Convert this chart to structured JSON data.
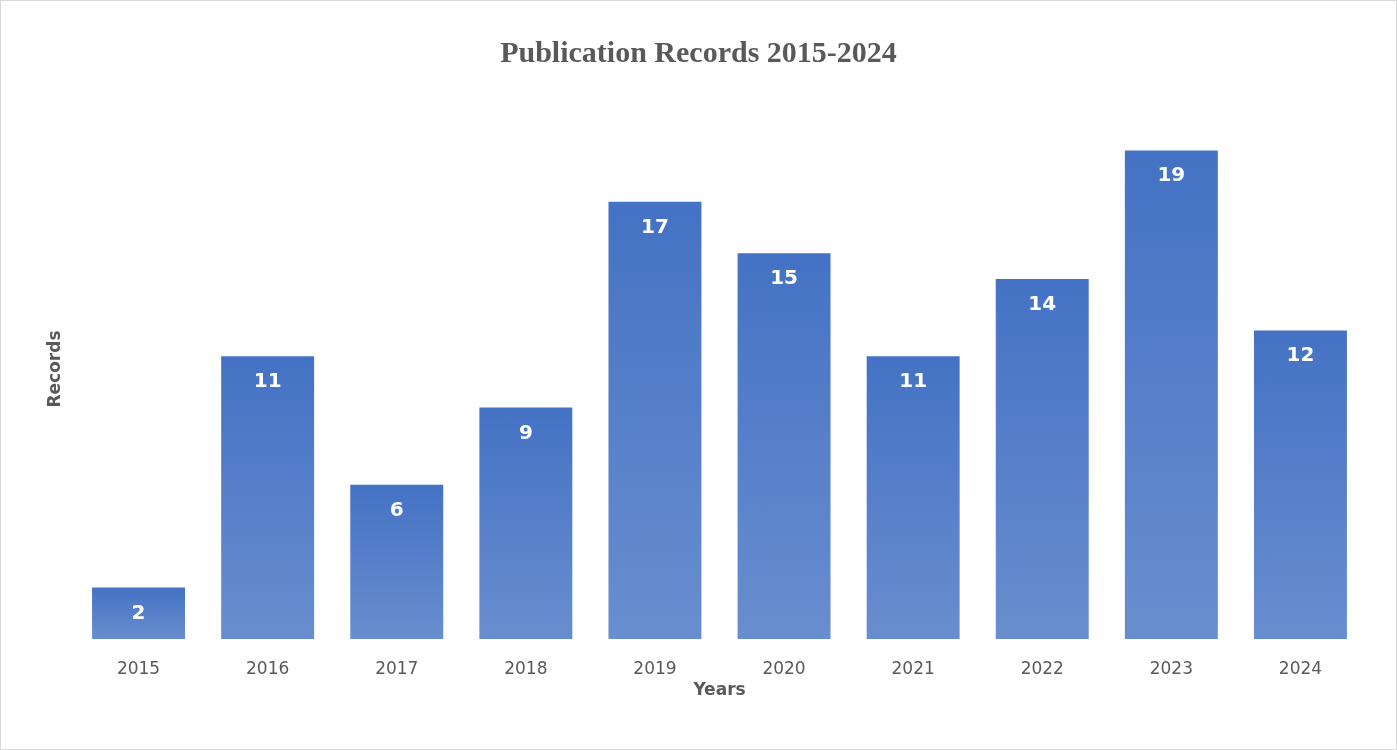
{
  "chart_data": {
    "type": "bar",
    "title": "Publication Records 2015-2024",
    "xlabel": "Years",
    "ylabel": "Records",
    "categories": [
      "2015",
      "2016",
      "2017",
      "2018",
      "2019",
      "2020",
      "2021",
      "2022",
      "2023",
      "2024"
    ],
    "values": [
      2,
      11,
      6,
      9,
      17,
      15,
      11,
      14,
      19,
      12
    ],
    "color": "#4472c4",
    "data_labels": true,
    "tick_labels": "x",
    "grid": false
  }
}
